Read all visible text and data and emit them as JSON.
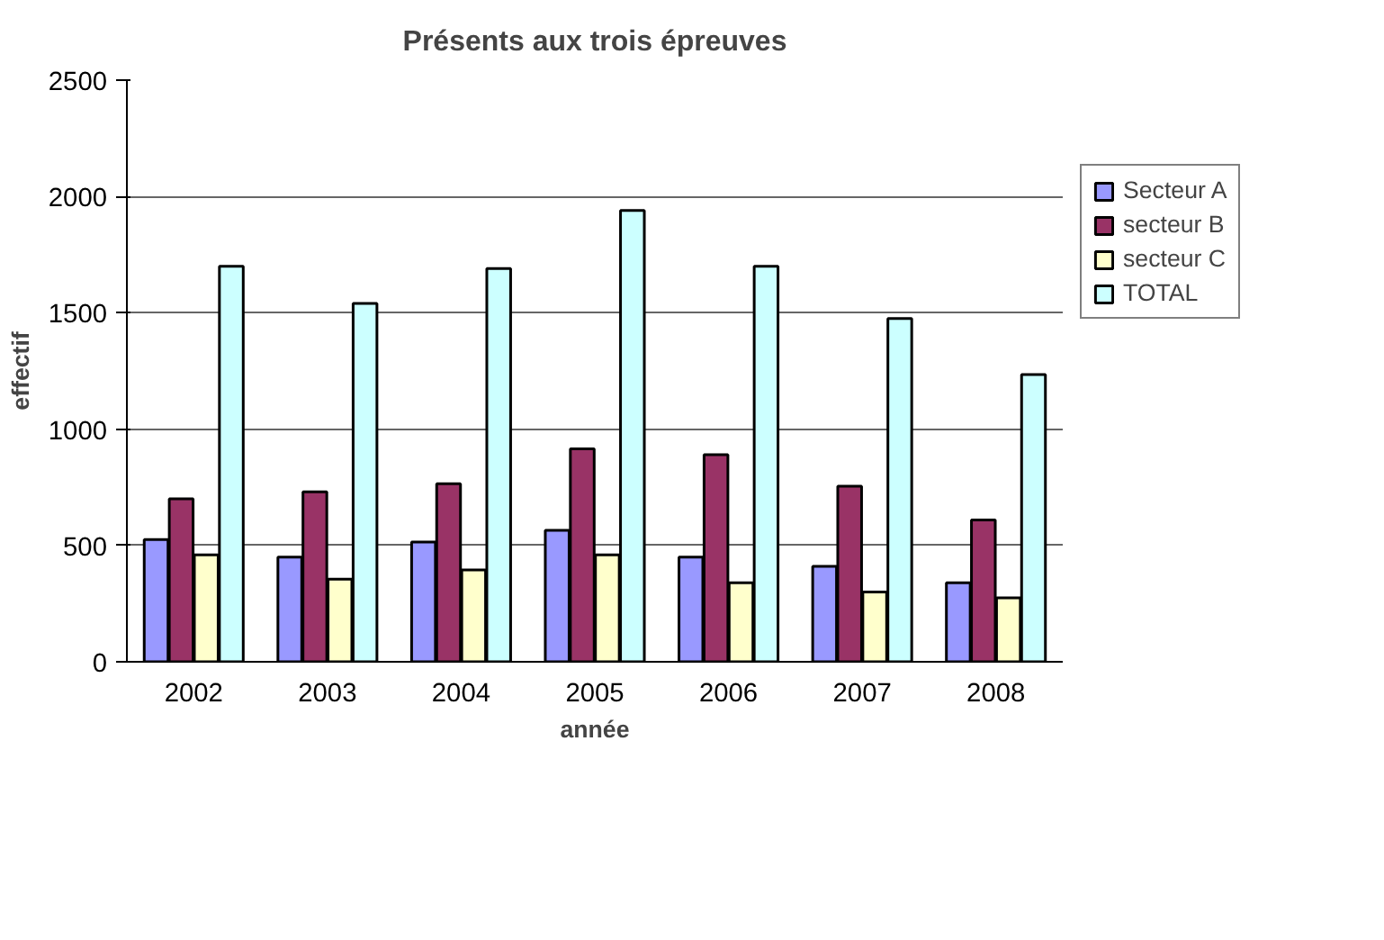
{
  "chart_data": {
    "type": "bar",
    "title": "Présents aux trois épreuves",
    "xlabel": "année",
    "ylabel": "effectif",
    "categories": [
      "2002",
      "2003",
      "2004",
      "2005",
      "2006",
      "2007",
      "2008"
    ],
    "series": [
      {
        "name": "Secteur A",
        "color": "#9999ff",
        "values": [
          525,
          450,
          515,
          565,
          450,
          410,
          340
        ]
      },
      {
        "name": "secteur B",
        "color": "#993366",
        "values": [
          700,
          730,
          765,
          915,
          890,
          755,
          610
        ]
      },
      {
        "name": "secteur C",
        "color": "#ffffcc",
        "values": [
          460,
          355,
          395,
          460,
          340,
          300,
          275
        ]
      },
      {
        "name": "TOTAL",
        "color": "#ccffff",
        "values": [
          1700,
          1540,
          1690,
          1940,
          1700,
          1475,
          1235
        ]
      }
    ],
    "ylim": [
      0,
      2500
    ],
    "yticks": [
      0,
      500,
      1000,
      1500,
      2000,
      2500
    ],
    "grid": "y",
    "legend": "right"
  }
}
